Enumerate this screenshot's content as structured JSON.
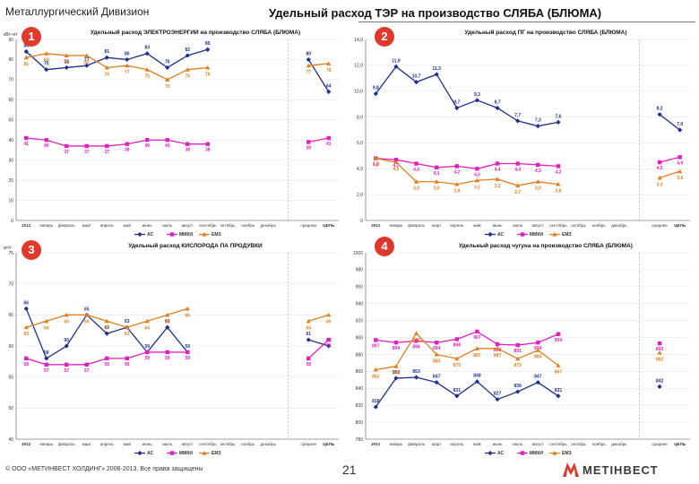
{
  "header": {
    "division": "Металлургический Дивизион",
    "title": "Удельный расход ТЭР на производство СЛЯБА (БЛЮМА)"
  },
  "footer": {
    "copyright": "© ООО «МЕТИНВЕСТ ХОЛДИНГ» 2006-2013. Все права защищены",
    "page": "21",
    "logo": "МЕТІНВЕСТ"
  },
  "colors": {
    "ac": "#1f2f8f",
    "mmk": "#e020c0",
    "enz": "#e08020",
    "badge": "#e0392b",
    "grid": "#dcdcdc",
    "axis": "#555555"
  },
  "chart_data": [
    {
      "badge": "1",
      "type": "line",
      "title": "Удельный расход ЭЛЕКТРОЭНЕРГИИ на производство СЛЯБА (БЛЮМА)",
      "ylabel": "кВт-ч/т",
      "ylim": [
        0,
        90
      ],
      "yticks": [
        "0",
        "10",
        "20",
        "30",
        "40",
        "50",
        "60",
        "70",
        "80",
        "90"
      ],
      "categories": [
        "2012",
        "январь",
        "февраль",
        "март",
        "апрель",
        "май",
        "июнь",
        "июль",
        "август",
        "сентябрь",
        "октябрь",
        "ноябрь",
        "декабрь",
        "",
        "среднее",
        "ЦЕЛЬ"
      ],
      "legend": [
        "АС",
        "ММКИ",
        "ЕМЗ"
      ],
      "series": [
        {
          "name": "АС",
          "values": [
            84,
            75,
            76,
            77,
            81,
            80,
            83,
            76,
            82,
            85,
            null,
            null,
            null,
            null,
            80,
            64
          ],
          "labels": [
            "84",
            "75",
            "76",
            "77",
            "81",
            "80",
            "83",
            "76",
            "82",
            "85",
            "",
            "",
            "",
            "",
            "80",
            "64"
          ]
        },
        {
          "name": "ММКИ",
          "values": [
            41,
            40,
            37,
            37,
            37,
            38,
            40,
            40,
            38,
            38,
            null,
            null,
            null,
            null,
            39,
            41
          ],
          "labels": [
            "41",
            "40",
            "37",
            "37",
            "37",
            "38",
            "40",
            "40",
            "38",
            "38",
            "",
            "",
            "",
            "",
            "39",
            "41"
          ]
        },
        {
          "name": "ЕМЗ",
          "values": [
            81,
            83,
            82,
            82,
            76,
            77,
            75,
            70,
            75,
            76,
            null,
            null,
            null,
            null,
            77,
            78
          ],
          "labels": [
            "81",
            "83",
            "82",
            "82",
            "76",
            "77",
            "75",
            "70",
            "75",
            "76",
            "",
            "",
            "",
            "",
            "77",
            "78"
          ]
        }
      ]
    },
    {
      "badge": "2",
      "type": "line",
      "title": "Удельный расход ПГ на производство СЛЯБА (БЛЮМА)",
      "ylabel": "",
      "ylim": [
        0,
        14
      ],
      "yticks": [
        "0",
        "2,0",
        "4,0",
        "6,0",
        "8,0",
        "10,0",
        "12,0",
        "14,0"
      ],
      "categories": [
        "2012",
        "январь",
        "февраль",
        "март",
        "апрель",
        "май",
        "июнь",
        "июль",
        "август",
        "сентябрь",
        "октябрь",
        "ноябрь",
        "декабрь",
        "",
        "среднее",
        "ЦЕЛЬ"
      ],
      "legend": [
        "АС",
        "ММКИ",
        "ЕМЗ"
      ],
      "series": [
        {
          "name": "АС",
          "values": [
            9.8,
            11.9,
            10.7,
            11.3,
            8.7,
            9.3,
            8.7,
            7.7,
            7.3,
            7.6,
            null,
            null,
            null,
            null,
            8.2,
            7.0
          ],
          "labels": [
            "9,8",
            "11,9",
            "10,7",
            "11,3",
            "8,7",
            "9,3",
            "8,7",
            "7,7",
            "7,3",
            "7,6",
            "",
            "",
            "",
            "",
            "8,2",
            "7,0"
          ]
        },
        {
          "name": "ММКИ",
          "values": [
            4.8,
            4.7,
            4.4,
            4.1,
            4.2,
            4.0,
            4.4,
            4.4,
            4.3,
            4.2,
            null,
            null,
            null,
            null,
            4.5,
            4.9
          ],
          "labels": [
            "4,8",
            "4,7",
            "4,4",
            "4,1",
            "4,2",
            "4,0",
            "4,4",
            "4,4",
            "4,3",
            "4,2",
            "",
            "",
            "",
            "",
            "4,5",
            "4,9"
          ]
        },
        {
          "name": "ЕМЗ",
          "values": [
            4.8,
            4.5,
            3.0,
            3.0,
            2.8,
            3.1,
            3.2,
            2.7,
            3.0,
            2.8,
            null,
            null,
            null,
            null,
            3.3,
            3.8
          ],
          "labels": [
            "4,8",
            "4,5",
            "3,0",
            "3,0",
            "2,8",
            "3,1",
            "3,2",
            "2,7",
            "3,0",
            "2,8",
            "",
            "",
            "",
            "",
            "3,3",
            "3,8"
          ]
        }
      ]
    },
    {
      "badge": "3",
      "type": "line",
      "title": "Удельный расход КИСЛОРОДА ПА ПРОДУВКИ",
      "ylabel": "м³/т",
      "ylim": [
        45,
        75
      ],
      "yticks": [
        "45",
        "50",
        "55",
        "60",
        "65",
        "70",
        "75"
      ],
      "categories": [
        "2012",
        "январь",
        "февраль",
        "март",
        "апрель",
        "май",
        "июнь",
        "июль",
        "август",
        "сентябрь",
        "октябрь",
        "ноябрь",
        "декабрь",
        "",
        "среднее",
        "ЦЕЛЬ"
      ],
      "legend": [
        "АС",
        "ММКИ",
        "ЕМЗ"
      ],
      "series": [
        {
          "name": "АС",
          "values": [
            66,
            58,
            60,
            65,
            62,
            63,
            59,
            63,
            59,
            null,
            null,
            null,
            null,
            null,
            61,
            60
          ],
          "labels": [
            "66",
            "58",
            "60",
            "65",
            "62",
            "63",
            "59",
            "63",
            "59",
            "",
            "",
            "",
            "",
            "",
            "61",
            "60"
          ]
        },
        {
          "name": "ММКИ",
          "values": [
            58,
            57,
            57,
            57,
            58,
            58,
            59,
            59,
            59,
            null,
            null,
            null,
            null,
            null,
            58,
            61
          ],
          "labels": [
            "58",
            "57",
            "57",
            "57",
            "58",
            "58",
            "59",
            "59",
            "59",
            "",
            "",
            "",
            "",
            "",
            "58",
            "61"
          ]
        },
        {
          "name": "ЕМЗ",
          "values": [
            63,
            64,
            65,
            65,
            64,
            63,
            64,
            65,
            66,
            null,
            null,
            null,
            null,
            null,
            64,
            65
          ],
          "labels": [
            "63",
            "64",
            "65",
            "65",
            "64",
            "63",
            "64",
            "65",
            "66",
            "",
            "",
            "",
            "",
            "",
            "64",
            "65"
          ]
        }
      ]
    },
    {
      "badge": "4",
      "type": "line",
      "title": "Удельный расход чугуна на производство СЛЯБА (БЛЮМА)",
      "ylabel": "",
      "ylim": [
        780,
        1000
      ],
      "yticks": [
        "780",
        "800",
        "820",
        "840",
        "860",
        "880",
        "900",
        "920",
        "940",
        "960",
        "980",
        "1000"
      ],
      "categories": [
        "2012",
        "январь",
        "февраль",
        "март",
        "апрель",
        "май",
        "июнь",
        "июль",
        "август",
        "сентябрь",
        "октябрь",
        "ноябрь",
        "декабрь",
        "",
        "среднее",
        "ЦЕЛЬ"
      ],
      "legend": [
        "АС",
        "ММКИ",
        "ЕМЗ"
      ],
      "series": [
        {
          "name": "АС",
          "values": [
            818,
            852,
            853,
            847,
            831,
            848,
            827,
            836,
            847,
            831,
            null,
            null,
            null,
            null,
            842,
            null
          ],
          "labels": [
            "818",
            "852",
            "853",
            "847",
            "831",
            "848",
            "827",
            "836",
            "847",
            "831",
            "",
            "",
            "",
            "",
            "842",
            ""
          ]
        },
        {
          "name": "ММКИ",
          "values": [
            897,
            894,
            896,
            894,
            898,
            907,
            892,
            891,
            894,
            904,
            null,
            null,
            null,
            null,
            893,
            null
          ],
          "labels": [
            "897",
            "894",
            "896",
            "894",
            "898",
            "907",
            "892",
            "891",
            "894",
            "904",
            "",
            "",
            "",
            "",
            "893",
            ""
          ]
        },
        {
          "name": "ЕМЗ",
          "values": [
            862,
            866,
            905,
            880,
            875,
            887,
            887,
            875,
            885,
            867,
            null,
            null,
            null,
            null,
            882,
            null
          ],
          "labels": [
            "862",
            "866",
            "905",
            "880",
            "875",
            "887",
            "887",
            "875",
            "885",
            "867",
            "",
            "",
            "",
            "",
            "882",
            ""
          ]
        }
      ]
    }
  ]
}
